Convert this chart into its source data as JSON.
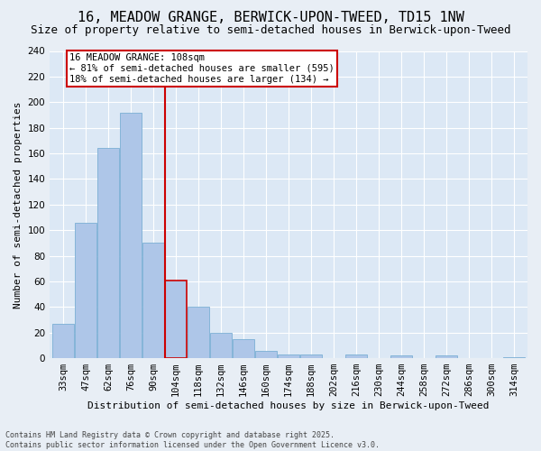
{
  "title": "16, MEADOW GRANGE, BERWICK-UPON-TWEED, TD15 1NW",
  "subtitle": "Size of property relative to semi-detached houses in Berwick-upon-Tweed",
  "xlabel": "Distribution of semi-detached houses by size in Berwick-upon-Tweed",
  "ylabel": "Number of semi-detached properties",
  "footer": "Contains HM Land Registry data © Crown copyright and database right 2025.\nContains public sector information licensed under the Open Government Licence v3.0.",
  "bar_labels": [
    "33sqm",
    "47sqm",
    "62sqm",
    "76sqm",
    "90sqm",
    "104sqm",
    "118sqm",
    "132sqm",
    "146sqm",
    "160sqm",
    "174sqm",
    "188sqm",
    "202sqm",
    "216sqm",
    "230sqm",
    "244sqm",
    "258sqm",
    "272sqm",
    "286sqm",
    "300sqm",
    "314sqm"
  ],
  "bar_values": [
    27,
    106,
    164,
    192,
    90,
    61,
    40,
    20,
    15,
    6,
    3,
    3,
    0,
    3,
    0,
    2,
    0,
    2,
    0,
    0,
    1
  ],
  "bar_color": "#aec6e8",
  "bar_edge_color": "#7bafd4",
  "highlight_bar_index": 5,
  "highlight_bar_edge_color": "#cc0000",
  "vline_color": "#cc0000",
  "annotation_title": "16 MEADOW GRANGE: 108sqm",
  "annotation_line1": "← 81% of semi-detached houses are smaller (595)",
  "annotation_line2": "18% of semi-detached houses are larger (134) →",
  "annotation_box_color": "#ffffff",
  "annotation_box_edge": "#cc0000",
  "bg_color": "#e8eef5",
  "plot_bg_color": "#dce8f5",
  "ylim": [
    0,
    240
  ],
  "yticks": [
    0,
    20,
    40,
    60,
    80,
    100,
    120,
    140,
    160,
    180,
    200,
    220,
    240
  ],
  "title_fontsize": 11,
  "subtitle_fontsize": 9,
  "label_fontsize": 8,
  "tick_fontsize": 7.5,
  "annotation_fontsize": 7.5,
  "footer_fontsize": 6
}
